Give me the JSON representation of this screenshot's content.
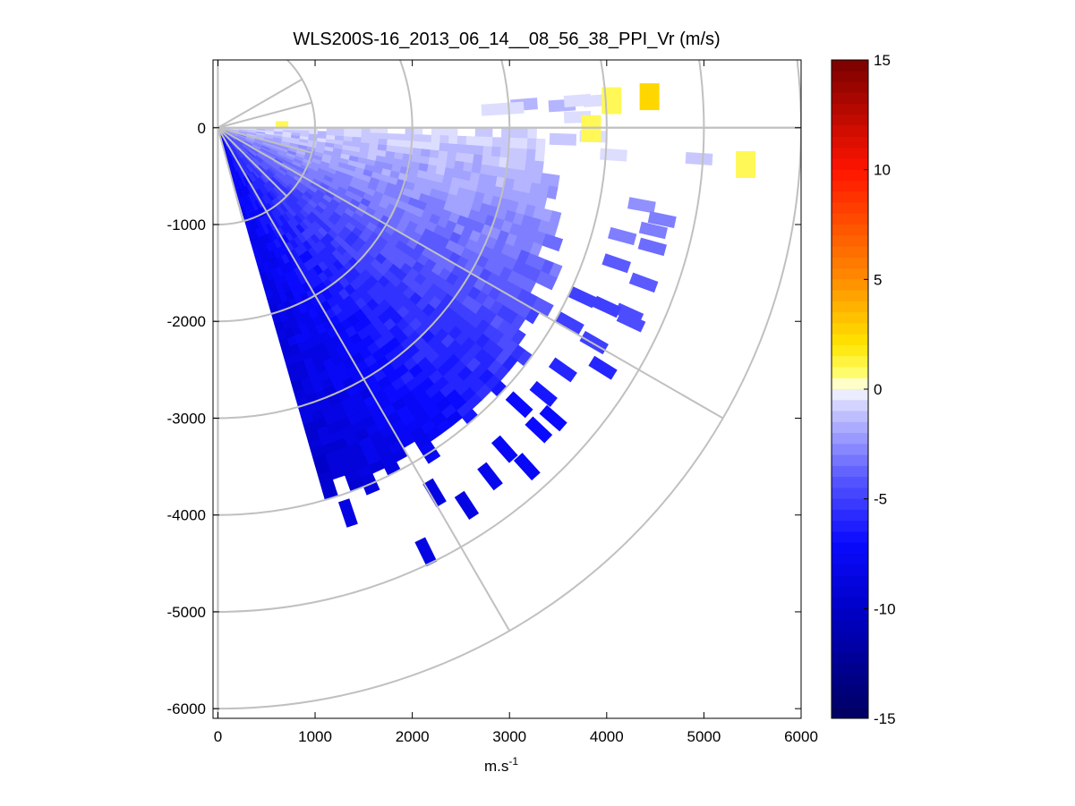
{
  "chart_data": {
    "type": "heatmap",
    "subtype": "polar-ppi-scan",
    "title": "WLS200S-16_2013_06_14__08_56_38_PPI_Vr (m/s)",
    "xlabel": "m.s",
    "xlabel_superscript": "-1",
    "ylabel": "",
    "xlim": [
      -50,
      6000
    ],
    "ylim": [
      -6100,
      700
    ],
    "x_ticks": [
      0,
      1000,
      2000,
      3000,
      4000,
      5000,
      6000
    ],
    "x_tick_labels": [
      "0",
      "1000",
      "2000",
      "3000",
      "4000",
      "5000",
      "6000"
    ],
    "y_ticks": [
      0,
      -1000,
      -2000,
      -3000,
      -4000,
      -5000,
      -6000
    ],
    "y_tick_labels": [
      "0",
      "-1000",
      "-2000",
      "-3000",
      "-4000",
      "-5000",
      "-6000"
    ],
    "grid": {
      "polar_rings": [
        1000,
        2000,
        3000,
        4000,
        5000,
        6000
      ],
      "spokes_deg_clockwise_from_east": [
        0,
        30,
        60,
        90
      ],
      "near_spokes_deg": [
        -30,
        -15,
        15,
        45,
        75
      ],
      "color": "#c0c0c0"
    },
    "scan": {
      "azimuth_range_deg_clockwise_from_east": [
        0,
        74
      ],
      "range_max_m": 4100,
      "main_edge_start_angle_deg": 40,
      "main_edge_range_m": 3900,
      "main_edge_end_angle_deg": 0,
      "main_edge_end_range_m": 3350,
      "description_values": "Radial velocity from about -0.5 m/s near the top edge to about -9 m/s along the lower edge"
    },
    "velocity_field": {
      "vr_near_east_ms": -0.5,
      "vr_at_74deg_ms": -9.0,
      "shape": "increasingly negative with angle and range"
    },
    "positive_patches": [
      {
        "x": 3840,
        "y": -10,
        "vr": 1.0
      },
      {
        "x": 4440,
        "y": 320,
        "vr": 2.5
      },
      {
        "x": 4050,
        "y": 280,
        "vr": 1.0
      },
      {
        "x": 5430,
        "y": -380,
        "vr": 1.0
      },
      {
        "x": 660,
        "y": 30,
        "vr": 1.0
      }
    ],
    "scattered_cells": [
      {
        "x": 1340,
        "y": -3980,
        "vr": -8.5
      },
      {
        "x": 2140,
        "y": -4380,
        "vr": -8.5
      },
      {
        "x": 2560,
        "y": -3900,
        "vr": -8.5
      },
      {
        "x": 2230,
        "y": -3770,
        "vr": -8.5
      },
      {
        "x": 2800,
        "y": -3600,
        "vr": -8.0
      },
      {
        "x": 3180,
        "y": -3500,
        "vr": -7.5
      },
      {
        "x": 2950,
        "y": -3320,
        "vr": -7.5
      },
      {
        "x": 3300,
        "y": -3120,
        "vr": -7.0
      },
      {
        "x": 3450,
        "y": -3000,
        "vr": -7.0
      },
      {
        "x": 3100,
        "y": -2860,
        "vr": -7.0
      },
      {
        "x": 3350,
        "y": -2750,
        "vr": -6.5
      },
      {
        "x": 3550,
        "y": -2500,
        "vr": -6.0
      },
      {
        "x": 3960,
        "y": -2480,
        "vr": -6.0
      },
      {
        "x": 3870,
        "y": -2220,
        "vr": -5.0
      },
      {
        "x": 3620,
        "y": -2020,
        "vr": -5.0
      },
      {
        "x": 4250,
        "y": -2000,
        "vr": -4.5
      },
      {
        "x": 4380,
        "y": -1600,
        "vr": -4.0
      },
      {
        "x": 4100,
        "y": -1400,
        "vr": -4.0
      },
      {
        "x": 4470,
        "y": -1230,
        "vr": -3.5
      },
      {
        "x": 4160,
        "y": -1120,
        "vr": -3.0
      },
      {
        "x": 4360,
        "y": -800,
        "vr": -2.5
      },
      {
        "x": 4570,
        "y": -950,
        "vr": -3.0
      },
      {
        "x": 4480,
        "y": -1060,
        "vr": -3.0
      },
      {
        "x": 4950,
        "y": -320,
        "vr": -1.0
      },
      {
        "x": 4070,
        "y": -280,
        "vr": -0.5
      },
      {
        "x": 3860,
        "y": -90,
        "vr": -0.5
      },
      {
        "x": 3540,
        "y": 230,
        "vr": -1.5
      },
      {
        "x": 3700,
        "y": 280,
        "vr": -0.5
      },
      {
        "x": 3900,
        "y": 280,
        "vr": -0.5
      },
      {
        "x": 3150,
        "y": 240,
        "vr": -1.5
      },
      {
        "x": 3010,
        "y": 200,
        "vr": -0.3
      },
      {
        "x": 2850,
        "y": 190,
        "vr": -0.3
      },
      {
        "x": 3700,
        "y": 110,
        "vr": -0.5
      },
      {
        "x": 3550,
        "y": -120,
        "vr": -1.0
      },
      {
        "x": 4230,
        "y": -1920,
        "vr": -4.5
      },
      {
        "x": 4000,
        "y": -1850,
        "vr": -5.0
      },
      {
        "x": 3750,
        "y": -1750,
        "vr": -5.0
      }
    ],
    "colorbar": {
      "range": [
        -15,
        15
      ],
      "ticks": [
        15,
        10,
        5,
        0,
        -5,
        -10,
        -15
      ],
      "tick_labels": [
        "15",
        "10",
        "5",
        "0",
        "-5",
        "-10",
        "-15"
      ],
      "colormap": "blue-white-red (custom jet variant with white at 0)",
      "colors": {
        "max": "#7a0000",
        "mid_pos": "#ff8000",
        "low_pos": "#ffff66",
        "zero": "#ffffff",
        "low_neg": "#c8c8ff",
        "mid_neg": "#3a3aff",
        "min": "#000060"
      }
    }
  }
}
